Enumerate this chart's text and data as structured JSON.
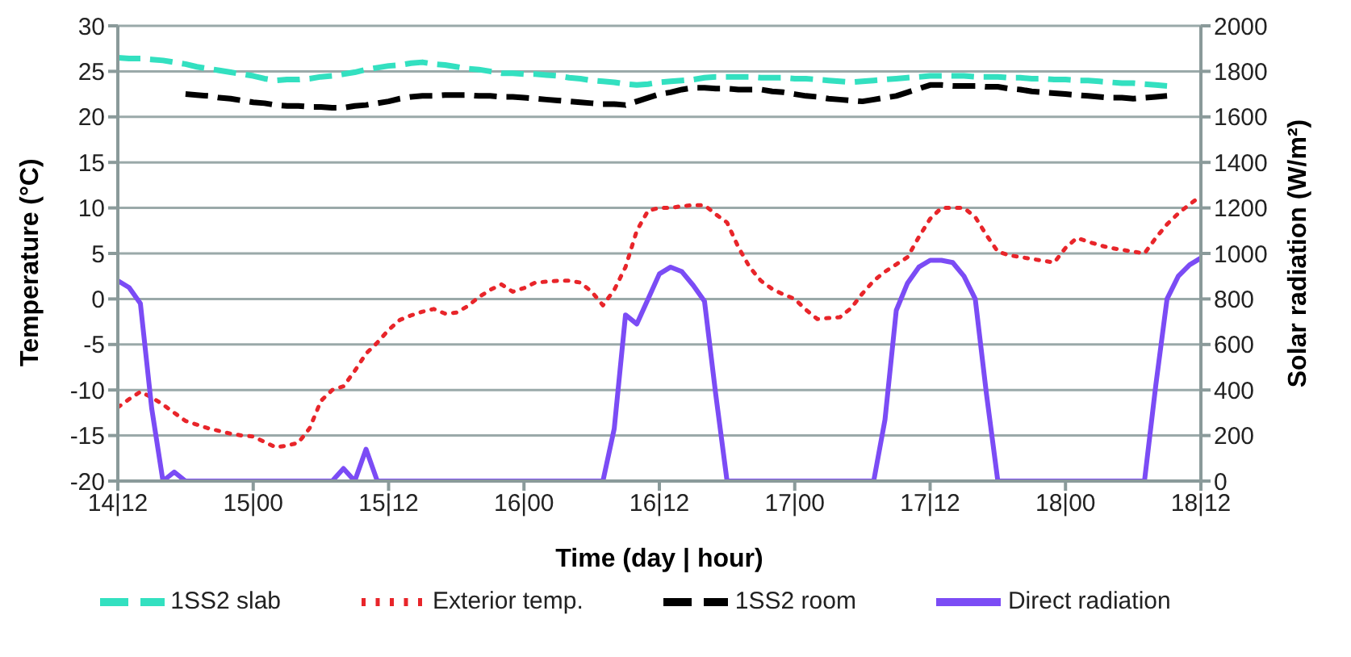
{
  "chart_data": {
    "type": "line",
    "xlabel": "Time (day | hour)",
    "ylabel": "Temperature (°C)",
    "y2label": "Solar radiation (W/m²)",
    "categories": [
      "14|12",
      null,
      null,
      null,
      null,
      null,
      null,
      null,
      null,
      null,
      null,
      null,
      "15|00",
      null,
      null,
      null,
      null,
      null,
      null,
      null,
      null,
      null,
      null,
      null,
      "15|12",
      null,
      null,
      null,
      null,
      null,
      null,
      null,
      null,
      null,
      null,
      null,
      "16|00",
      null,
      null,
      null,
      null,
      null,
      null,
      null,
      null,
      null,
      null,
      null,
      "16|12",
      null,
      null,
      null,
      null,
      null,
      null,
      null,
      null,
      null,
      null,
      null,
      "17|00",
      null,
      null,
      null,
      null,
      null,
      null,
      null,
      null,
      null,
      null,
      null,
      "17|12",
      null,
      null,
      null,
      null,
      null,
      null,
      null,
      null,
      null,
      null,
      null,
      "18|00",
      null,
      null,
      null,
      null,
      null,
      null,
      null,
      null,
      null,
      null,
      null,
      "18|12"
    ],
    "ylim": [
      -20,
      30
    ],
    "yticks": [
      -20,
      -15,
      -10,
      -5,
      0,
      5,
      10,
      15,
      20,
      25,
      30
    ],
    "y2lim": [
      0,
      2000
    ],
    "y2ticks": [
      0,
      200,
      400,
      600,
      800,
      1000,
      1200,
      1400,
      1600,
      1800,
      2000
    ],
    "grid": "y",
    "legend": "bottom",
    "marker": "none",
    "series": [
      {
        "name": "1SS2 slab",
        "color": "#33e0c0",
        "line_style": "dashed",
        "values": [
          26.5,
          26.4,
          26.4,
          26.3,
          26.2,
          26.0,
          25.8,
          25.5,
          25.3,
          25.1,
          24.9,
          24.7,
          24.5,
          24.2,
          24.0,
          24.1,
          24.1,
          24.2,
          24.4,
          24.5,
          24.7,
          24.9,
          25.2,
          25.4,
          25.6,
          25.7,
          25.9,
          26.0,
          25.8,
          25.7,
          25.5,
          25.3,
          25.2,
          25.0,
          24.8,
          24.8,
          24.7,
          24.7,
          24.6,
          24.5,
          24.3,
          24.2,
          24.0,
          23.9,
          23.8,
          23.6,
          23.5,
          23.6,
          23.8,
          23.9,
          24.0,
          24.1,
          24.3,
          24.4,
          24.4,
          24.4,
          24.4,
          24.3,
          24.3,
          24.3,
          24.2,
          24.2,
          24.1,
          24.0,
          23.9,
          23.8,
          23.9,
          24.0,
          24.1,
          24.2,
          24.3,
          24.4,
          24.5,
          24.5,
          24.5,
          24.5,
          24.4,
          24.4,
          24.4,
          24.3,
          24.3,
          24.2,
          24.2,
          24.1,
          24.1,
          24.0,
          24.0,
          23.9,
          23.8,
          23.7,
          23.7,
          23.6,
          23.5,
          23.4,
          null,
          null,
          null
        ]
      },
      {
        "name": "Exterior temp.",
        "color": "#e8252a",
        "line_style": "dotted",
        "values": [
          -11.9,
          -11.0,
          -10.2,
          -10.8,
          -11.6,
          -12.5,
          -13.4,
          -13.8,
          -14.2,
          -14.5,
          -14.8,
          -15.0,
          -15.1,
          -15.7,
          -16.3,
          -16.1,
          -15.8,
          -14.2,
          -11.2,
          -10.0,
          -9.6,
          -7.9,
          -6.0,
          -4.8,
          -3.4,
          -2.3,
          -1.8,
          -1.4,
          -1.1,
          -1.6,
          -1.5,
          -0.8,
          0.2,
          1.0,
          1.6,
          0.8,
          1.2,
          1.8,
          1.9,
          2.0,
          2.0,
          1.8,
          0.8,
          -0.7,
          1.0,
          3.5,
          7.5,
          9.7,
          10.0,
          10.0,
          10.2,
          10.3,
          10.3,
          9.3,
          8.4,
          5.7,
          3.5,
          2.0,
          1.1,
          0.5,
          0,
          -1.2,
          -2.2,
          -2.1,
          -2.0,
          -1.0,
          0.6,
          2.0,
          3.0,
          3.8,
          4.6,
          6.8,
          8.8,
          10.0,
          10.0,
          10.0,
          9.0,
          7.0,
          5.2,
          4.8,
          4.6,
          4.4,
          4.2,
          4.0,
          5.6,
          6.7,
          6.3,
          5.9,
          5.6,
          5.4,
          5.2,
          5.0,
          6.7,
          8.2,
          9.4,
          10.4,
          11.3
        ]
      },
      {
        "name": "1SS2 room",
        "color": "#000000",
        "line_style": "dashed",
        "values": [
          null,
          null,
          null,
          null,
          null,
          null,
          22.5,
          22.4,
          22.3,
          22.1,
          22.0,
          21.8,
          21.6,
          21.5,
          21.3,
          21.2,
          21.2,
          21.1,
          21.1,
          21.0,
          21.0,
          21.2,
          21.3,
          21.5,
          21.7,
          22.0,
          22.2,
          22.3,
          22.3,
          22.4,
          22.4,
          22.4,
          22.3,
          22.3,
          22.2,
          22.2,
          22.1,
          22.0,
          21.9,
          21.8,
          21.7,
          21.6,
          21.5,
          21.4,
          21.4,
          21.3,
          21.7,
          22.1,
          22.5,
          22.7,
          23.0,
          23.2,
          23.2,
          23.1,
          23.1,
          23.0,
          23.0,
          23.0,
          22.8,
          22.7,
          22.5,
          22.3,
          22.2,
          22.0,
          21.9,
          21.8,
          21.7,
          21.9,
          22.1,
          22.3,
          22.7,
          23.1,
          23.5,
          23.5,
          23.4,
          23.4,
          23.4,
          23.3,
          23.3,
          23.1,
          23.0,
          22.8,
          22.7,
          22.6,
          22.5,
          22.4,
          22.3,
          22.2,
          22.1,
          22.1,
          22.0,
          22.1,
          22.2,
          22.3,
          null,
          null,
          null
        ]
      },
      {
        "name": "Direct radiation",
        "color": "#7b4cf5",
        "line_style": "solid",
        "axis": "y2",
        "values": [
          880,
          850,
          780,
          320,
          0,
          40,
          0,
          0,
          0,
          0,
          0,
          0,
          0,
          0,
          0,
          0,
          0,
          0,
          0,
          0,
          55,
          0,
          140,
          0,
          0,
          0,
          0,
          0,
          0,
          0,
          0,
          0,
          0,
          0,
          0,
          0,
          0,
          0,
          0,
          0,
          0,
          0,
          0,
          0,
          230,
          730,
          690,
          800,
          910,
          940,
          920,
          860,
          790,
          380,
          0,
          0,
          0,
          0,
          0,
          0,
          0,
          0,
          0,
          0,
          0,
          0,
          0,
          0,
          270,
          750,
          870,
          940,
          970,
          970,
          960,
          900,
          800,
          380,
          0,
          0,
          0,
          0,
          0,
          0,
          0,
          0,
          0,
          0,
          0,
          0,
          0,
          0,
          420,
          800,
          900,
          950,
          980
        ]
      }
    ]
  }
}
